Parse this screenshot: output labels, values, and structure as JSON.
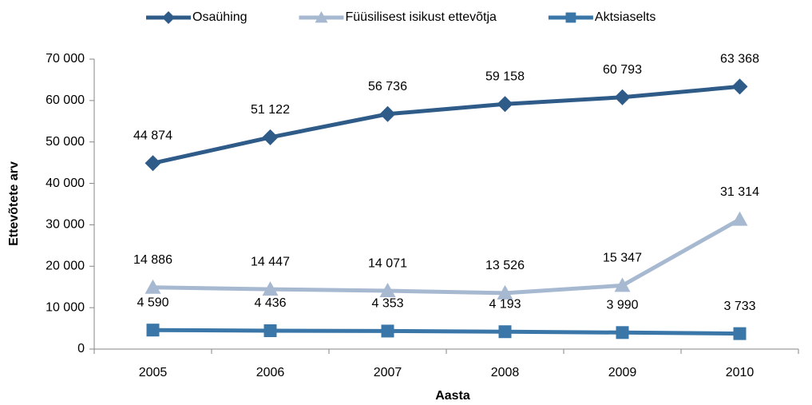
{
  "chart_data": {
    "type": "line",
    "x_label": "Aasta",
    "y_label": "Ettevõtete arv",
    "categories": [
      "2005",
      "2006",
      "2007",
      "2008",
      "2009",
      "2010"
    ],
    "series": [
      {
        "name": "Osaühing",
        "color": "#2e5b88",
        "marker": "diamond",
        "values": [
          44874,
          51122,
          56736,
          59158,
          60793,
          63368
        ],
        "value_labels": [
          "44 874",
          "51 122",
          "56 736",
          "59 158",
          "60 793",
          "63 368"
        ]
      },
      {
        "name": "Füüsilisest isikust ettevõtja",
        "color": "#a6b9d1",
        "marker": "triangle",
        "values": [
          14886,
          14447,
          14071,
          13526,
          15347,
          31314
        ],
        "value_labels": [
          "14 886",
          "14 447",
          "14 071",
          "13 526",
          "15 347",
          "31 314"
        ]
      },
      {
        "name": "Aktsiaselts",
        "color": "#3a77a8",
        "marker": "square",
        "values": [
          4590,
          4436,
          4353,
          4193,
          3990,
          3733
        ],
        "value_labels": [
          "4 590",
          "4 436",
          "4 353",
          "4 193",
          "3 990",
          "3 733"
        ]
      }
    ],
    "ylim": [
      0,
      70000
    ],
    "yticks": [
      0,
      {
        "value": 10000,
        "label": "10 000"
      },
      {
        "value": 20000,
        "label": "20 000"
      },
      {
        "value": 30000,
        "label": "30 000"
      },
      {
        "value": 40000,
        "label": "40 000"
      },
      {
        "value": 50000,
        "label": "50 000"
      },
      {
        "value": 60000,
        "label": "60 000"
      },
      {
        "value": 70000,
        "label": "70 000"
      }
    ],
    "grid": false,
    "legend": "top"
  }
}
